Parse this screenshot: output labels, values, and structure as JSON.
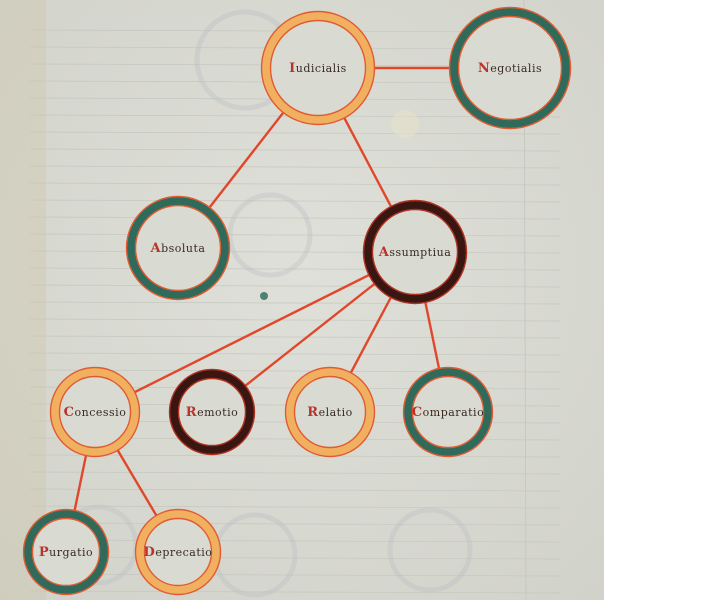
{
  "colors": {
    "parchment": "#d9dad2",
    "rule_line": "#c5c7c0",
    "edge": "#e0482c",
    "ring_orange": "#f0b060",
    "ring_orange_inner": "#e25a30",
    "ring_green": "#2f6a5a",
    "ring_green_inner": "#e25a30",
    "ring_dark": "#3a1612",
    "ring_dark_inner": "#b0301e",
    "initial_red": "#b8342a",
    "initial_green": "#2f6a5a"
  },
  "diagram": {
    "nodes": [
      {
        "id": "iudicialis",
        "label": "Iudicialis",
        "ring": "orange"
      },
      {
        "id": "negotialis",
        "label": "Negotialis",
        "ring": "green"
      },
      {
        "id": "absoluta",
        "label": "Absoluta",
        "ring": "green"
      },
      {
        "id": "assumptiua",
        "label": "Assumptiua",
        "ring": "dark"
      },
      {
        "id": "concessio",
        "label": "Concessio",
        "ring": "orange"
      },
      {
        "id": "remotio",
        "label": "Remotio",
        "ring": "dark"
      },
      {
        "id": "relatio",
        "label": "Relatio",
        "ring": "orange"
      },
      {
        "id": "comparatio",
        "label": "Comparatio",
        "ring": "green"
      },
      {
        "id": "purgatio",
        "label": "Purgatio",
        "ring": "green"
      },
      {
        "id": "deprecatio",
        "label": "Deprecatio",
        "ring": "orange"
      }
    ],
    "edges": [
      [
        "iudicialis",
        "negotialis"
      ],
      [
        "iudicialis",
        "absoluta"
      ],
      [
        "iudicialis",
        "assumptiua"
      ],
      [
        "assumptiua",
        "concessio"
      ],
      [
        "assumptiua",
        "remotio"
      ],
      [
        "assumptiua",
        "relatio"
      ],
      [
        "assumptiua",
        "comparatio"
      ],
      [
        "concessio",
        "purgatio"
      ],
      [
        "concessio",
        "deprecatio"
      ]
    ]
  }
}
